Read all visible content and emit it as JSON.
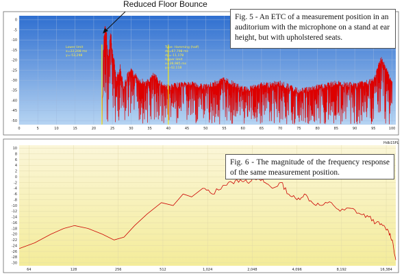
{
  "annotation": "Reduced Floor Bounce",
  "captions": {
    "fig5": "Fig. 5 - An ETC of a measurement position in an auditorium with the microphone on a stand at ear height, but with upholstered seats.",
    "fig6": "Fig. 6 - The magnitude of the frequency response of the same measurement position."
  },
  "colors": {
    "etc_bg_top": "#2f6fd0",
    "etc_bg_bottom": "#b6d4f2",
    "fr_bg_top": "#fbf6d8",
    "fr_bg_bottom": "#f4ec9a",
    "trace": "#dd0000",
    "marker": "#ffee00"
  },
  "etc_overlay": {
    "lower_limit": [
      "Lower limit",
      "x=22,208 ms",
      "y=-53,298"
    ],
    "type_info": [
      "Type: Hamming (half)",
      "dx=67,798 ms",
      "dy=-11,178",
      "Upper limit",
      "x=39,985 ms",
      "y=-42,118"
    ]
  },
  "fr_top_label": "Hdb1SPL",
  "chart_data": [
    {
      "type": "line",
      "title": "Fig. 5",
      "x_ticks": [
        0,
        5,
        10,
        15,
        20,
        25,
        30,
        35,
        40,
        45,
        50,
        55,
        60,
        65,
        70,
        75,
        80,
        85,
        90,
        95,
        100
      ],
      "y_ticks": [
        0,
        -5,
        -10,
        -15,
        -20,
        -25,
        -30,
        -35,
        -40,
        -45,
        -50
      ],
      "xlim": [
        0,
        101
      ],
      "ylim": [
        -52,
        2
      ],
      "markers": [
        22.2,
        40.0
      ],
      "series": [
        {
          "x": [
            22.2,
            22.6,
            23.0,
            23.4,
            23.8,
            24.1,
            24.5,
            25.0,
            25.5,
            26.0,
            27.0,
            28.0,
            29.0,
            30.0,
            32.0,
            34.0,
            36.0,
            38.0,
            40.0,
            45.0,
            50.0,
            55.0,
            60.0,
            65.0,
            70.0,
            75.0,
            80.0,
            85.0,
            90.0,
            95.0,
            97.0,
            100.0
          ],
          "y": [
            -50,
            -8,
            -2,
            -6,
            -18,
            -12,
            -4,
            -15,
            -20,
            -28,
            -22,
            -32,
            -26,
            -24,
            -28,
            -30,
            -26,
            -30,
            -32,
            -30,
            -32,
            -28,
            -33,
            -31,
            -30,
            -34,
            -32,
            -30,
            -31,
            -29,
            -17,
            -30
          ]
        }
      ]
    },
    {
      "type": "line",
      "title": "Fig. 6",
      "x_scale": "log",
      "x_ticks": [
        64,
        128,
        256,
        512,
        1024,
        2048,
        4096,
        8192,
        16384
      ],
      "y_ticks": [
        10,
        8,
        6,
        4,
        2,
        0,
        -2,
        -4,
        -6,
        -8,
        -10,
        -12,
        -14,
        -16,
        -18,
        -20,
        -22,
        -24,
        -26,
        -28,
        -30
      ],
      "xlim": [
        55,
        19000
      ],
      "ylim": [
        -31,
        11
      ],
      "series": [
        {
          "x": [
            55,
            70,
            90,
            110,
            130,
            160,
            200,
            240,
            280,
            330,
            400,
            500,
            600,
            700,
            800,
            950,
            1100,
            1300,
            1500,
            1700,
            1900,
            2100,
            2300,
            2500,
            2800,
            3200,
            3600,
            4100,
            4600,
            5200,
            6000,
            7000,
            8000,
            9500,
            11000,
            12500,
            14000,
            15500,
            17000,
            18000,
            19000
          ],
          "y": [
            -25,
            -23,
            -20,
            -18,
            -17,
            -18,
            -20,
            -22,
            -21,
            -17,
            -13,
            -9,
            -10,
            -6,
            -7,
            -4,
            -6,
            -3,
            -2,
            -1,
            -2,
            0,
            -1,
            -2,
            -4,
            -2,
            -6,
            -8,
            -6,
            -9,
            -10,
            -9,
            -12,
            -11,
            -13,
            -14,
            -16,
            -17,
            -19,
            -22,
            -29
          ]
        }
      ]
    }
  ]
}
